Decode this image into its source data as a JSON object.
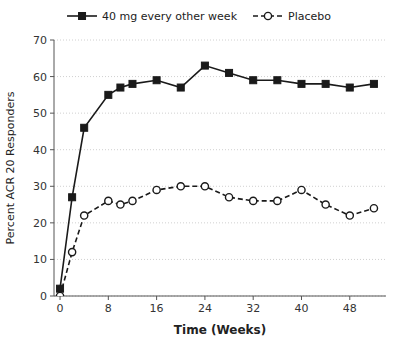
{
  "chart_data": {
    "type": "line",
    "x": [
      0,
      2,
      4,
      8,
      10,
      12,
      16,
      20,
      24,
      28,
      32,
      36,
      40,
      44,
      48,
      52
    ],
    "series": [
      {
        "name": "40 mg every other week",
        "color": "#1a1a1a",
        "marker": "square",
        "line_style": "solid",
        "values": [
          2,
          27,
          46,
          55,
          57,
          58,
          59,
          57,
          63,
          61,
          59,
          59,
          58,
          58,
          57,
          58
        ]
      },
      {
        "name": "Placebo",
        "color": "#1a1a1a",
        "marker": "circle",
        "line_style": "dashed",
        "values": [
          0,
          12,
          22,
          26,
          25,
          26,
          29,
          30,
          30,
          27,
          26,
          26,
          29,
          25,
          22,
          24
        ]
      }
    ],
    "xlabel": "Time (Weeks)",
    "ylabel": "Percent ACR 20 Responders",
    "xlim": [
      -1,
      54
    ],
    "ylim": [
      0,
      70
    ],
    "xticks": [
      0,
      8,
      16,
      24,
      32,
      40,
      48
    ],
    "yticks": [
      0,
      10,
      20,
      30,
      40,
      50,
      60,
      70
    ],
    "grid": true,
    "legend": "top"
  }
}
